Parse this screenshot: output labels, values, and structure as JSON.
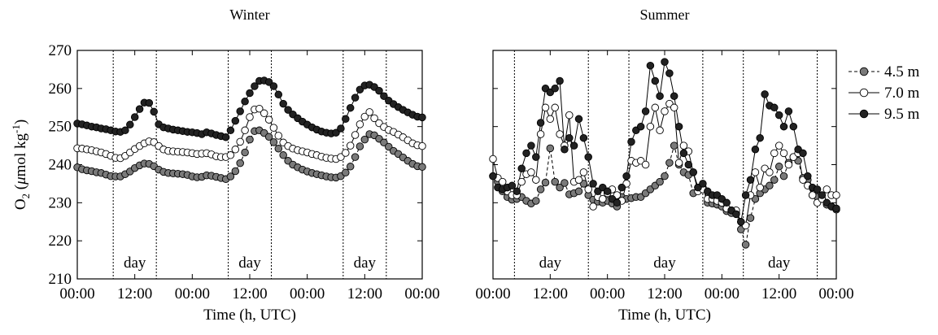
{
  "chart_data": [
    {
      "type": "line",
      "title": "Winter",
      "xlabel": "Time  (h, UTC)",
      "ylabel": "O2 (μmol kg-1)",
      "ylabel_parts": {
        "main": "O",
        "sub": "2",
        "open": " (",
        "mu": "μ",
        "unit": "mol kg",
        "sup": "-1",
        "close": ")"
      },
      "xlim": [
        0,
        72
      ],
      "ylim": [
        210,
        270
      ],
      "xticks": [
        0,
        12,
        24,
        36,
        48,
        60,
        72
      ],
      "xtick_labels": [
        "00:00",
        "12:00",
        "00:00",
        "12:00",
        "00:00",
        "12:00",
        "00:00"
      ],
      "yticks": [
        210,
        220,
        230,
        240,
        250,
        260,
        270
      ],
      "ytick_labels": [
        "210",
        "220",
        "230",
        "240",
        "250",
        "260",
        "270"
      ],
      "day_boundaries": [
        7.5,
        16.5,
        31.5,
        40.5,
        55.5,
        64.5
      ],
      "day_labels": [
        {
          "text": "day",
          "x": 12
        },
        {
          "text": "day",
          "x": 36
        },
        {
          "text": "day",
          "x": 60
        }
      ],
      "x_step_hours": 1,
      "series": [
        {
          "name": "4.5 m",
          "style": "gray-dashed",
          "values": [
            239.3,
            238.8,
            238.5,
            238.3,
            238.0,
            237.8,
            237.4,
            237.0,
            236.9,
            236.9,
            237.5,
            238.2,
            239.1,
            239.8,
            240.3,
            240.2,
            239.6,
            238.7,
            238.1,
            237.8,
            237.7,
            237.6,
            237.5,
            237.3,
            236.9,
            236.7,
            236.8,
            237.2,
            237.1,
            236.8,
            236.5,
            236.2,
            236.9,
            238.3,
            240.4,
            243.2,
            246.6,
            248.8,
            249.0,
            248.3,
            247.3,
            245.9,
            244.2,
            242.5,
            241.0,
            240.0,
            239.3,
            238.7,
            238.2,
            237.8,
            237.5,
            237.2,
            236.9,
            236.7,
            236.6,
            237.0,
            237.9,
            239.5,
            242.0,
            244.8,
            246.6,
            248.0,
            247.7,
            246.8,
            245.8,
            244.7,
            243.6,
            242.8,
            241.9,
            241.0,
            240.2,
            239.6,
            239.4
          ]
        },
        {
          "name": "7.0 m",
          "style": "white",
          "values": [
            244.3,
            244.2,
            244.0,
            243.8,
            243.5,
            243.2,
            242.8,
            242.3,
            241.8,
            241.7,
            242.3,
            243.2,
            244.1,
            244.9,
            245.6,
            246.1,
            245.9,
            244.9,
            244.0,
            243.6,
            243.5,
            243.4,
            243.3,
            243.2,
            243.0,
            242.8,
            242.9,
            243.0,
            242.7,
            242.2,
            242.0,
            242.0,
            242.5,
            244.0,
            246.0,
            249.0,
            252.5,
            254.5,
            254.7,
            253.5,
            251.8,
            249.7,
            247.6,
            245.8,
            244.9,
            244.2,
            243.8,
            243.5,
            243.2,
            242.8,
            242.5,
            242.1,
            241.8,
            241.6,
            241.5,
            242.0,
            243.1,
            245.0,
            247.8,
            250.6,
            252.6,
            253.8,
            252.2,
            250.9,
            249.9,
            249.1,
            248.6,
            247.9,
            247.2,
            246.4,
            245.6,
            245.1,
            244.9
          ]
        },
        {
          "name": "9.5 m",
          "style": "black",
          "values": [
            250.8,
            250.6,
            250.3,
            250.0,
            249.8,
            249.5,
            249.3,
            249.0,
            248.7,
            248.6,
            249.0,
            250.5,
            252.5,
            254.6,
            256.3,
            256.2,
            253.9,
            250.6,
            249.8,
            249.5,
            249.2,
            249.0,
            248.8,
            248.6,
            248.5,
            248.3,
            248.0,
            248.5,
            248.2,
            247.8,
            247.5,
            247.2,
            249.0,
            251.5,
            254.0,
            256.6,
            258.8,
            260.6,
            262.0,
            262.1,
            261.7,
            260.6,
            258.4,
            256.0,
            254.4,
            253.2,
            252.2,
            251.3,
            250.5,
            249.8,
            249.2,
            248.7,
            248.4,
            248.2,
            248.4,
            249.5,
            252.0,
            254.9,
            257.6,
            259.7,
            260.8,
            261.0,
            260.4,
            259.4,
            258.0,
            256.8,
            255.9,
            255.1,
            254.4,
            253.7,
            253.1,
            252.6,
            252.4
          ]
        }
      ]
    },
    {
      "type": "line",
      "title": "Summer",
      "xlabel": "Time  (h, UTC)",
      "xlim": [
        0,
        72
      ],
      "ylim": [
        210,
        270
      ],
      "xticks": [
        0,
        12,
        24,
        36,
        48,
        60,
        72
      ],
      "xtick_labels": [
        "00:00",
        "12:00",
        "00:00",
        "12:00",
        "00:00",
        "12:00",
        "00:00"
      ],
      "yticks": [
        210,
        220,
        230,
        240,
        250,
        260,
        270
      ],
      "day_boundaries": [
        4.5,
        20.0,
        28.5,
        44.0,
        52.5,
        68.0
      ],
      "day_labels": [
        {
          "text": "day",
          "x": 12
        },
        {
          "text": "day",
          "x": 36
        },
        {
          "text": "day",
          "x": 60
        }
      ],
      "x_step_hours": 1,
      "series": [
        {
          "name": "4.5 m",
          "style": "gray-dashed",
          "values": [
            237.0,
            235.5,
            233.0,
            231.5,
            230.8,
            231.0,
            231.5,
            230.5,
            229.8,
            230.5,
            233.5,
            235.3,
            244.3,
            235.5,
            234.0,
            235.2,
            232.2,
            232.5,
            233.0,
            235.0,
            232.0,
            230.8,
            230.3,
            230.0,
            230.5,
            229.8,
            229.0,
            231.5,
            231.0,
            231.2,
            231.5,
            231.5,
            232.5,
            233.5,
            234.5,
            235.5,
            237.0,
            240.5,
            245.0,
            240.0,
            238.0,
            237.3,
            232.5,
            234.0,
            234.0,
            230.0,
            229.8,
            229.5,
            229.0,
            227.8,
            227.3,
            227.2,
            223.0,
            219.0,
            226.0,
            231.0,
            232.5,
            233.5,
            234.5,
            236.0,
            239.5,
            237.0,
            240.5,
            242.0,
            241.0,
            236.5,
            236.0,
            232.0,
            231.5,
            231.0,
            229.5,
            229.0,
            228.2
          ]
        },
        {
          "name": "7.0 m",
          "style": "white",
          "values": [
            241.5,
            236.5,
            235.5,
            233.0,
            232.0,
            232.0,
            235.5,
            237.5,
            238.0,
            236.0,
            248.0,
            255.0,
            252.0,
            255.0,
            248.0,
            245.0,
            253.0,
            235.5,
            236.0,
            238.0,
            233.5,
            229.0,
            231.5,
            231.0,
            232.5,
            233.5,
            232.0,
            230.5,
            235.0,
            241.0,
            240.5,
            241.0,
            240.0,
            250.0,
            255.0,
            249.0,
            254.0,
            256.0,
            255.0,
            240.5,
            245.0,
            243.5,
            238.0,
            233.0,
            233.5,
            231.0,
            231.0,
            230.5,
            230.0,
            228.5,
            228.0,
            228.0,
            225.0,
            224.0,
            232.0,
            238.0,
            234.0,
            239.0,
            238.0,
            243.0,
            245.0,
            243.0,
            240.0,
            242.0,
            243.0,
            236.0,
            234.5,
            232.0,
            230.0,
            231.0,
            233.5,
            232.0,
            232.0
          ]
        },
        {
          "name": "9.5 m",
          "style": "black",
          "values": [
            237.0,
            234.0,
            233.5,
            234.0,
            234.5,
            233.0,
            239.0,
            243.0,
            245.0,
            242.0,
            251.0,
            260.0,
            259.0,
            260.0,
            262.0,
            244.0,
            247.0,
            245.0,
            252.0,
            247.0,
            242.0,
            235.0,
            233.0,
            234.0,
            233.0,
            231.0,
            230.0,
            234.0,
            237.0,
            246.0,
            249.0,
            250.0,
            254.0,
            266.0,
            262.0,
            258.0,
            267.0,
            264.0,
            258.0,
            250.0,
            243.0,
            240.0,
            238.0,
            234.0,
            235.0,
            233.0,
            232.0,
            232.0,
            231.0,
            230.0,
            228.0,
            227.0,
            225.0,
            232.0,
            236.0,
            244.0,
            247.0,
            258.5,
            255.5,
            255.0,
            253.0,
            250.0,
            254.0,
            250.0,
            244.0,
            243.0,
            237.0,
            234.0,
            233.5,
            232.0,
            230.0,
            229.0,
            228.5
          ]
        }
      ]
    }
  ],
  "legend": {
    "items": [
      {
        "label": "4.5 m",
        "style": "gray-dashed"
      },
      {
        "label": "7.0 m",
        "style": "white"
      },
      {
        "label": "9.5 m",
        "style": "black"
      }
    ]
  },
  "colors": {
    "gray_marker": "#7a7a7a",
    "black_marker": "#222222",
    "white_marker": "#ffffff",
    "axis": "#000000"
  }
}
